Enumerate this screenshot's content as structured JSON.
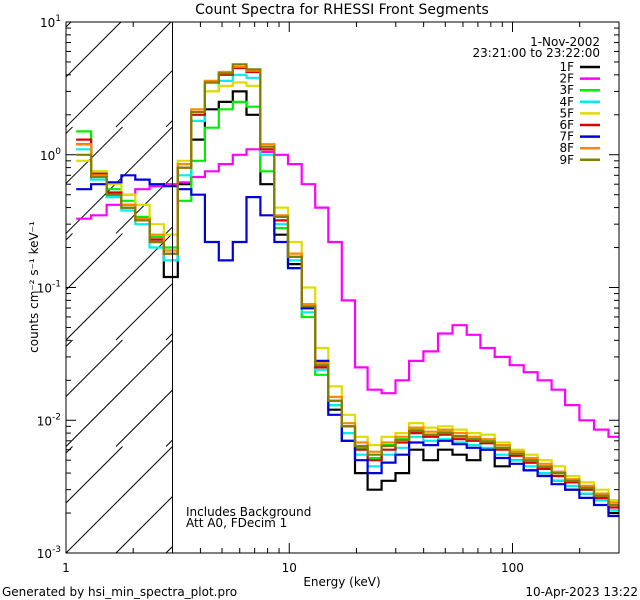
{
  "chart_data": {
    "type": "line",
    "title": "Count Spectra for RHESSI Front Segments",
    "xlabel": "Energy (keV)",
    "ylabel": "counts cm⁻² s⁻¹ keV⁻¹",
    "xscale": "log",
    "yscale": "log",
    "xlim": [
      1,
      300
    ],
    "ylim": [
      0.001,
      10
    ],
    "xticks": [
      {
        "v": 1,
        "label": "1"
      },
      {
        "v": 10,
        "label": "10"
      },
      {
        "v": 100,
        "label": "100"
      }
    ],
    "yticks": [
      {
        "v": 10,
        "base": "10",
        "exp": "1"
      },
      {
        "v": 1,
        "base": "10",
        "exp": "0"
      },
      {
        "v": 0.1,
        "base": "10",
        "exp": "-1"
      },
      {
        "v": 0.01,
        "base": "10",
        "exp": "-2"
      },
      {
        "v": 0.001,
        "base": "10",
        "exp": "-3"
      }
    ],
    "shaded_below_keV": 3,
    "annotations": [
      "Includes Background",
      "Att A0, FDecim 1"
    ],
    "date": "1-Nov-2002",
    "time_range": "23:21:00 to 23:22:00",
    "legend_position": "top-right",
    "x": [
      1.2,
      1.4,
      1.65,
      1.9,
      2.2,
      2.55,
      2.95,
      3.4,
      3.9,
      4.5,
      5.2,
      6.0,
      6.9,
      8.0,
      9.2,
      10.6,
      12.2,
      14,
      16,
      18.5,
      21,
      24,
      28,
      32,
      37,
      43,
      50,
      58,
      67,
      77,
      90,
      105,
      120,
      140,
      160,
      185,
      215,
      250,
      290
    ],
    "series": [
      {
        "name": "1F",
        "color": "#000000",
        "values": [
          1.2,
          0.7,
          0.5,
          0.4,
          0.32,
          0.22,
          0.12,
          0.6,
          1.3,
          2.2,
          2.5,
          3.0,
          2.0,
          0.6,
          0.25,
          0.15,
          0.07,
          0.025,
          0.012,
          0.007,
          0.004,
          0.003,
          0.0035,
          0.004,
          0.006,
          0.005,
          0.006,
          0.0055,
          0.005,
          0.006,
          0.0045,
          0.005,
          0.0042,
          0.004,
          0.0035,
          0.003,
          0.0028,
          0.0025,
          0.002
        ]
      },
      {
        "name": "2F",
        "color": "#ff00ff",
        "values": [
          0.33,
          0.35,
          0.42,
          0.5,
          0.55,
          0.58,
          0.6,
          0.62,
          0.68,
          0.75,
          0.85,
          1.0,
          1.1,
          1.05,
          1.0,
          0.85,
          0.6,
          0.4,
          0.22,
          0.08,
          0.025,
          0.017,
          0.016,
          0.02,
          0.028,
          0.033,
          0.045,
          0.052,
          0.044,
          0.035,
          0.03,
          0.026,
          0.023,
          0.02,
          0.017,
          0.013,
          0.01,
          0.0085,
          0.0075
        ]
      },
      {
        "name": "3F",
        "color": "#00ee00",
        "values": [
          1.5,
          0.75,
          0.55,
          0.45,
          0.34,
          0.24,
          0.2,
          0.45,
          0.9,
          1.6,
          2.2,
          2.5,
          2.3,
          0.75,
          0.28,
          0.14,
          0.06,
          0.022,
          0.013,
          0.009,
          0.0062,
          0.0052,
          0.0065,
          0.0072,
          0.0085,
          0.0078,
          0.0082,
          0.0075,
          0.0072,
          0.007,
          0.0062,
          0.0055,
          0.0048,
          0.0044,
          0.0038,
          0.0035,
          0.003,
          0.0027,
          0.0023
        ]
      },
      {
        "name": "4F",
        "color": "#00eeee",
        "values": [
          1.1,
          0.65,
          0.48,
          0.38,
          0.3,
          0.2,
          0.16,
          0.7,
          1.8,
          3.0,
          3.6,
          4.0,
          3.8,
          1.0,
          0.3,
          0.16,
          0.065,
          0.024,
          0.013,
          0.008,
          0.0055,
          0.0045,
          0.0055,
          0.0062,
          0.0075,
          0.007,
          0.0072,
          0.0068,
          0.0065,
          0.0062,
          0.0055,
          0.005,
          0.0045,
          0.004,
          0.0035,
          0.0032,
          0.0028,
          0.0025,
          0.0021
        ]
      },
      {
        "name": "5F",
        "color": "#dddd00",
        "values": [
          0.9,
          0.75,
          0.6,
          0.5,
          0.42,
          0.3,
          0.25,
          0.9,
          2.1,
          3.0,
          3.3,
          3.5,
          3.3,
          1.1,
          0.4,
          0.22,
          0.1,
          0.035,
          0.018,
          0.011,
          0.0075,
          0.0065,
          0.0075,
          0.008,
          0.0095,
          0.0088,
          0.009,
          0.0085,
          0.008,
          0.0078,
          0.0068,
          0.006,
          0.0055,
          0.005,
          0.0045,
          0.0038,
          0.0034,
          0.003,
          0.0025
        ]
      },
      {
        "name": "6F",
        "color": "#dd0000",
        "values": [
          1.3,
          0.72,
          0.52,
          0.42,
          0.33,
          0.23,
          0.18,
          0.8,
          2.0,
          3.5,
          4.0,
          4.5,
          4.2,
          1.1,
          0.32,
          0.17,
          0.07,
          0.025,
          0.014,
          0.009,
          0.006,
          0.005,
          0.006,
          0.0068,
          0.008,
          0.0075,
          0.0078,
          0.0072,
          0.007,
          0.0067,
          0.006,
          0.0054,
          0.0048,
          0.0043,
          0.0038,
          0.0034,
          0.003,
          0.0026,
          0.0022
        ]
      },
      {
        "name": "7F",
        "color": "#0000dd",
        "values": [
          0.55,
          0.6,
          0.62,
          0.7,
          0.65,
          0.6,
          0.58,
          0.55,
          0.5,
          0.22,
          0.16,
          0.22,
          0.48,
          0.35,
          0.22,
          0.14,
          0.07,
          0.028,
          0.011,
          0.007,
          0.005,
          0.004,
          0.0048,
          0.0055,
          0.0068,
          0.0065,
          0.007,
          0.0066,
          0.0062,
          0.006,
          0.0052,
          0.0047,
          0.0042,
          0.0038,
          0.0033,
          0.003,
          0.0026,
          0.0023,
          0.0019
        ]
      },
      {
        "name": "8F",
        "color": "#ff8800",
        "values": [
          1.2,
          0.7,
          0.5,
          0.42,
          0.33,
          0.25,
          0.19,
          0.85,
          2.2,
          3.6,
          4.2,
          4.6,
          4.3,
          1.2,
          0.35,
          0.18,
          0.075,
          0.027,
          0.015,
          0.0095,
          0.0068,
          0.0058,
          0.0068,
          0.0075,
          0.0088,
          0.0082,
          0.0085,
          0.008,
          0.0075,
          0.0072,
          0.0065,
          0.0058,
          0.0052,
          0.0047,
          0.0041,
          0.0036,
          0.0032,
          0.0028,
          0.0024
        ]
      },
      {
        "name": "9F",
        "color": "#808000",
        "values": [
          1.0,
          0.68,
          0.5,
          0.4,
          0.32,
          0.22,
          0.18,
          0.8,
          2.1,
          3.5,
          4.1,
          4.8,
          4.4,
          1.15,
          0.34,
          0.17,
          0.072,
          0.026,
          0.014,
          0.009,
          0.0064,
          0.0055,
          0.0064,
          0.0071,
          0.0083,
          0.0078,
          0.008,
          0.0076,
          0.0072,
          0.0069,
          0.0062,
          0.0056,
          0.005,
          0.0045,
          0.004,
          0.0035,
          0.0031,
          0.0027,
          0.0023
        ]
      }
    ]
  },
  "footer": {
    "generator": "Generated by hsi_min_spectra_plot.pro",
    "timestamp": "10-Apr-2023 13:22"
  }
}
